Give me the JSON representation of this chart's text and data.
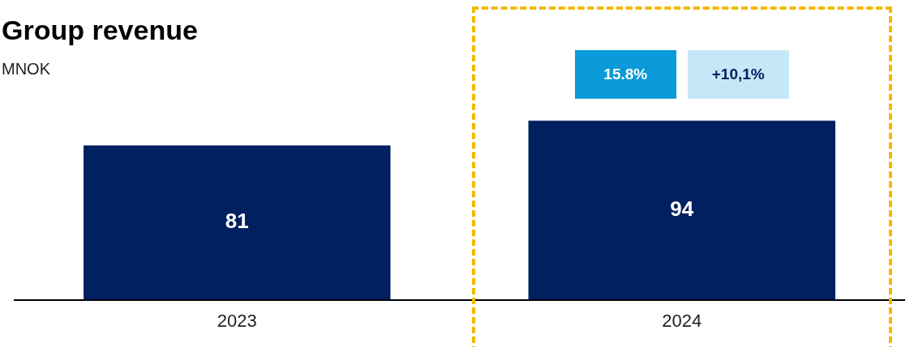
{
  "chart_data": {
    "type": "bar",
    "title": "Group revenue",
    "subtitle": "MNOK",
    "categories": [
      "2023",
      "2024"
    ],
    "values": [
      81,
      94
    ],
    "color": "#002060",
    "tick_labels": "x",
    "grid": false,
    "data_labels": true,
    "annotations": [
      "15.8%",
      "+10,1%"
    ]
  }
}
